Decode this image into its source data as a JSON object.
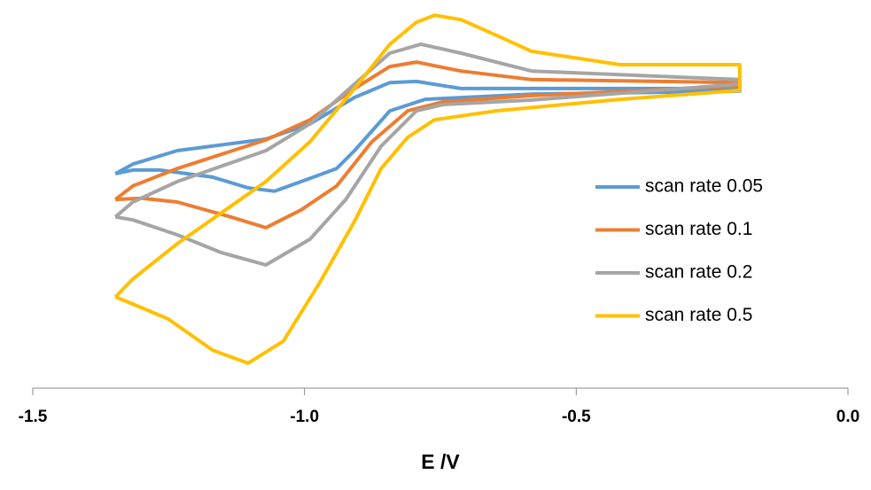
{
  "chart_data": {
    "type": "line",
    "xlabel": "E /V",
    "xlim": [
      -1.5,
      0.0
    ],
    "xticks": [
      {
        "value": -1.5,
        "label": "-1.5"
      },
      {
        "value": -1.0,
        "label": "-1.0"
      },
      {
        "value": -0.5,
        "label": "-0.5"
      },
      {
        "value": 0.0,
        "label": "0.0"
      }
    ],
    "ylim": [
      0,
      105
    ],
    "legend": "right",
    "series": [
      {
        "name": "scan rate 0.05",
        "color": "#5b9bd5",
        "x": [
          -1.348,
          -1.316,
          -1.234,
          -1.071,
          -0.99,
          -0.908,
          -0.843,
          -0.794,
          -0.712,
          -0.199,
          -0.199,
          -0.582,
          -0.778,
          -0.843,
          -0.908,
          -0.941,
          -1.006,
          -1.055,
          -1.104,
          -1.169,
          -1.267,
          -1.316,
          -1.348
        ],
        "values": [
          57.6,
          60.2,
          63.8,
          66.9,
          71,
          78.1,
          82.1,
          82.4,
          80.5,
          80.5,
          79.8,
          79,
          77.6,
          74.5,
          63.8,
          59,
          55.5,
          52.9,
          53.8,
          56.7,
          58.6,
          58.6,
          57.6
        ]
      },
      {
        "name": "scan rate 0.1",
        "color": "#ed7d31",
        "x": [
          -1.348,
          -1.316,
          -1.234,
          -1.071,
          -0.99,
          -0.908,
          -0.843,
          -0.794,
          -0.712,
          -0.582,
          -0.199,
          -0.199,
          -0.582,
          -0.745,
          -0.81,
          -0.876,
          -0.941,
          -1.006,
          -1.071,
          -1.136,
          -1.234,
          -1.299,
          -1.348
        ],
        "values": [
          50.7,
          54.3,
          59,
          66.7,
          72.1,
          80.5,
          86.4,
          87.6,
          85.2,
          82.9,
          82.1,
          81.2,
          78.6,
          76.9,
          74.5,
          66.2,
          54.3,
          47.9,
          43.1,
          46,
          50,
          51,
          50.7
        ]
      },
      {
        "name": "scan rate 0.2",
        "color": "#a5a5a5",
        "x": [
          -1.348,
          -1.316,
          -1.234,
          -1.071,
          -0.99,
          -0.908,
          -0.843,
          -0.786,
          -0.712,
          -0.582,
          -0.199,
          -0.199,
          -0.582,
          -0.745,
          -0.794,
          -0.859,
          -0.924,
          -0.99,
          -1.071,
          -1.153,
          -1.234,
          -1.316,
          -1.348
        ],
        "values": [
          46,
          50,
          55.5,
          63.8,
          71,
          81.7,
          90,
          92.4,
          90,
          85.2,
          82.9,
          81.7,
          77.4,
          76.2,
          74.5,
          65,
          50.7,
          40,
          33.1,
          36.4,
          41.2,
          45.2,
          46
        ]
      },
      {
        "name": "scan rate 0.5",
        "color": "#ffc000",
        "x": [
          -1.348,
          -1.316,
          -1.234,
          -1.153,
          -1.071,
          -0.99,
          -0.908,
          -0.843,
          -0.794,
          -0.761,
          -0.712,
          -0.647,
          -0.582,
          -0.419,
          -0.199,
          -0.199,
          -0.419,
          -0.647,
          -0.761,
          -0.81,
          -0.859,
          -0.908,
          -0.973,
          -1.039,
          -1.104,
          -1.169,
          -1.251,
          -1.316,
          -1.348
        ],
        "values": [
          24.5,
          29.3,
          38.8,
          47.1,
          55.5,
          66.2,
          80.5,
          92.4,
          98.3,
          100.2,
          99,
          94.8,
          90.5,
          86.9,
          86.9,
          80,
          77.6,
          74.5,
          72.1,
          67.4,
          59,
          44.8,
          28.1,
          12.6,
          6.7,
          10.2,
          18.6,
          22.6,
          24.5
        ]
      }
    ]
  }
}
